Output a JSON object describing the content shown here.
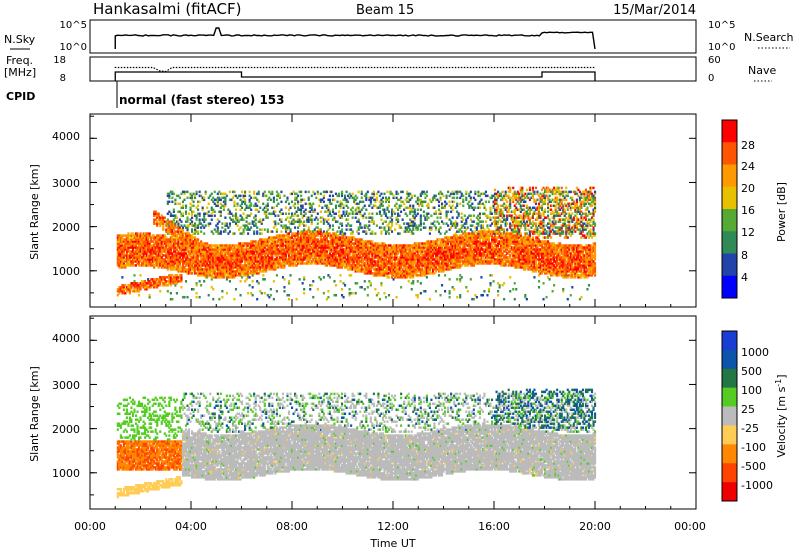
{
  "header": {
    "station": "Hankasalmi (fitACF)",
    "beam": "Beam 15",
    "date": "15/Mar/2014"
  },
  "noise_panel": {
    "left_label": "N.Sky",
    "left_ticks": [
      "10^5",
      "10^0"
    ],
    "right_label": "N.Search",
    "right_ticks": [
      "10^5",
      "10^0"
    ]
  },
  "freq_panel": {
    "left_label_1": "Freq.",
    "left_label_2": "[MHz]",
    "left_ticks": [
      "18",
      "8"
    ],
    "right_label": "Nave",
    "right_ticks": [
      "60",
      "0"
    ]
  },
  "cpid": {
    "label": "CPID",
    "text": "normal (fast stereo) 153"
  },
  "xaxis": {
    "label": "Time UT",
    "ticks": [
      "00:00",
      "04:00",
      "08:00",
      "12:00",
      "16:00",
      "20:00",
      "00:00"
    ]
  },
  "power_panel": {
    "ylabel": "Slant Range [km]",
    "yticks": [
      "4000",
      "3000",
      "2000",
      "1000"
    ],
    "cbar_label": "Power [dB]",
    "cbar_ticks": [
      "28",
      "24",
      "20",
      "16",
      "12",
      "8",
      "4"
    ]
  },
  "velocity_panel": {
    "ylabel": "Slant Range [km]",
    "yticks": [
      "4000",
      "3000",
      "2000",
      "1000"
    ],
    "cbar_label": "Velocity [m s",
    "cbar_label_sup": "-1",
    "cbar_label_end": "]",
    "cbar_ticks": [
      "1000",
      "500",
      "100",
      "25",
      "-25",
      "-100",
      "-500",
      "-1000"
    ]
  },
  "chart_data": [
    {
      "type": "heatmap",
      "name": "power",
      "x_range_hours": [
        0,
        24
      ],
      "y_range_km": [
        180,
        4550
      ],
      "data_time_range_hours": [
        1,
        20
      ],
      "colorbar": {
        "label": "Power [dB]",
        "range": [
          0,
          30
        ],
        "ticks": [
          4,
          8,
          12,
          16,
          20,
          24,
          28
        ],
        "colors": [
          "#0000ff",
          "#2244aa",
          "#2f8a55",
          "#55aa33",
          "#e7c000",
          "#ff9900",
          "#ff5500",
          "#ff0000"
        ]
      },
      "features": [
        {
          "region": "main echo band",
          "time_hours": [
            1,
            20
          ],
          "range_km": [
            1100,
            1900
          ],
          "power_db": [
            20,
            30
          ]
        },
        {
          "region": "upper weak echoes",
          "time_hours": [
            3,
            20
          ],
          "range_km": [
            1900,
            2800
          ],
          "power_db": [
            4,
            16
          ]
        },
        {
          "region": "near range echoes",
          "time_hours": [
            1,
            3.5
          ],
          "range_km": [
            450,
            750
          ],
          "power_db": [
            16,
            28
          ]
        }
      ]
    },
    {
      "type": "heatmap",
      "name": "velocity",
      "x_range_hours": [
        0,
        24
      ],
      "y_range_km": [
        180,
        4550
      ],
      "data_time_range_hours": [
        1,
        20
      ],
      "colorbar": {
        "label": "Velocity [m s-1]",
        "ticks": [
          1000,
          500,
          100,
          25,
          -25,
          -100,
          -500,
          -1000
        ],
        "colors": [
          "#1a3dd4",
          "#0b55aa",
          "#227744",
          "#55cc22",
          "#bbbbbb",
          "#ffcc55",
          "#ff8800",
          "#ff4400",
          "#ee0000"
        ]
      },
      "features": [
        {
          "region": "ground scatter",
          "time_hours": [
            3.5,
            20
          ],
          "range_km": [
            900,
            2200
          ],
          "velocity_ms": [
            -25,
            25
          ]
        },
        {
          "region": "early ionospheric echoes",
          "time_hours": [
            1,
            4
          ],
          "range_km": [
            1100,
            1600
          ],
          "velocity_ms": [
            -500,
            -100
          ]
        },
        {
          "region": "near range echoes",
          "time_hours": [
            1,
            3
          ],
          "range_km": [
            450,
            700
          ],
          "velocity_ms": [
            -100,
            -25
          ]
        }
      ]
    }
  ]
}
